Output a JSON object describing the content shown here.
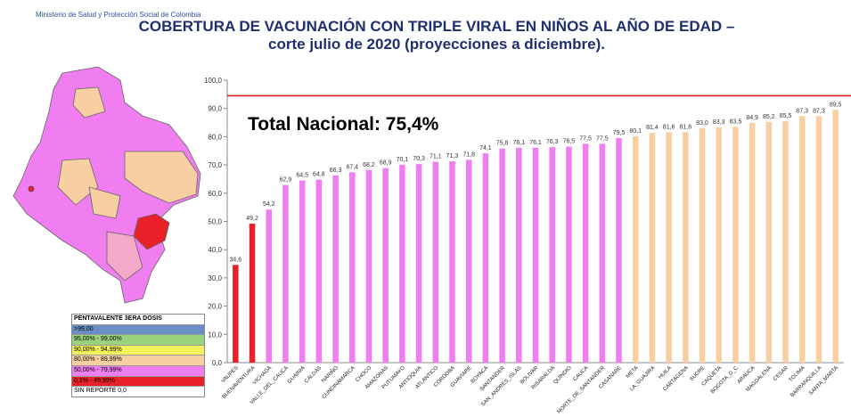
{
  "header": {
    "ministry": "Ministerio de Salud y Protección Social de Colombia",
    "title_line1": "COBERTURA DE VACUNACIÓN CON TRIPLE VIRAL EN NIÑOS AL AÑO DE EDAD –",
    "title_line2": "corte julio de 2020 (proyecciones a diciembre)."
  },
  "legend": {
    "title": "PENTAVALENTE 3ERA DOSIS",
    "items": [
      {
        "label": ">99,00",
        "color": "#6a8fc7"
      },
      {
        "label": "95,00% - 99,00%",
        "color": "#9bd27e"
      },
      {
        "label": "90,00% - 94,99%",
        "color": "#f2f25a"
      },
      {
        "label": "80,00% - 89,99%",
        "color": "#f8cfa3"
      },
      {
        "label": "50,00% - 79,99%",
        "color": "#f07ef0"
      },
      {
        "label": "0,1% - 49,99%",
        "color": "#e8202a"
      },
      {
        "label": "SIN REPORTE 0,0",
        "color": "#ffffff"
      }
    ]
  },
  "chart_data": {
    "type": "bar",
    "title": "",
    "annotation": "Total Nacional: 75,4%",
    "target_line": 94.5,
    "ylim": [
      0,
      100
    ],
    "yticks": [
      "0,0",
      "10,0",
      "20,0",
      "30,0",
      "40,0",
      "50,0",
      "60,0",
      "70,0",
      "80,0",
      "90,0",
      "100,0"
    ],
    "grid": false,
    "categories": [
      "VAUPES",
      "BUENAVENTURA",
      "VICHADA",
      "VALLE_DEL_CAUCA",
      "GUAINIA",
      "CALDAS",
      "NARIÑO",
      "CUNDINAMARCA",
      "CHOCO",
      "AMAZONAS",
      "PUTUMAYO",
      "ANTIOQUIA",
      "ATLANTICO",
      "CORDOBA",
      "GUAVIARE",
      "BOYACA",
      "SANTANDER",
      "SAN_ANDRES_ISLAS",
      "BOLIVAR",
      "RISARALDA",
      "QUINDIO",
      "CAUCA",
      "NORTE_DE_SANTANDER",
      "CASANARE",
      "META",
      "LA_GUAJIRA",
      "HUILA",
      "CARTAGENA",
      "SUCRE",
      "CAQUETA",
      "BOGOTA_D_C",
      "ARAUCA",
      "MAGDALENA",
      "CESAR",
      "TOLIMA",
      "BARRANQUILLA",
      "SANTA_MARTA"
    ],
    "values": [
      34.6,
      49.2,
      54.2,
      62.9,
      64.5,
      64.8,
      66.3,
      67.4,
      68.2,
      68.9,
      70.1,
      70.3,
      71.1,
      71.3,
      71.8,
      74.1,
      75.8,
      76.1,
      76.1,
      76.3,
      76.5,
      77.5,
      77.5,
      79.5,
      80.1,
      81.4,
      81.6,
      81.6,
      83.0,
      83.3,
      83.5,
      84.9,
      85.2,
      85.5,
      87.3,
      87.3,
      89.5
    ],
    "labels": [
      "34,6",
      "49,2",
      "54,2",
      "62,9",
      "64,5",
      "64,8",
      "66,3",
      "67,4",
      "68,2",
      "68,9",
      "70,1",
      "70,3",
      "71,1",
      "71,3",
      "71,8",
      "74,1",
      "75,8",
      "76,1",
      "76,1",
      "76,3",
      "76,5",
      "77,5",
      "77,5",
      "79,5",
      "80,1",
      "81,4",
      "81,6",
      "81,6",
      "83,0",
      "83,3",
      "83,5",
      "84,9",
      "85,2",
      "85,5",
      "87,3",
      "87,3",
      "89,5"
    ],
    "colors": {
      "low": "#e8202a",
      "mid": "#f07ef0",
      "high": "#f8cfa3",
      "target": "#d62020"
    }
  }
}
